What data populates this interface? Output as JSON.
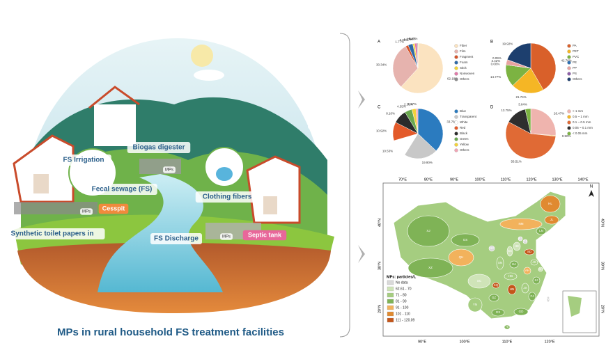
{
  "illustration": {
    "title": "MPs in rural household FS treatment facilities",
    "labels": [
      "FS Irrigation",
      "Biogas digester",
      "MPs",
      "Fecal sewage (FS)",
      "Clothing fibers",
      "MPs",
      "Cesspit",
      "Synthetic toilet papers in",
      "FS Discharge",
      "MPs",
      "Septic tank"
    ]
  },
  "chart_data": [
    {
      "type": "pie",
      "label": "A",
      "categories": [
        "Fiber",
        "Film",
        "Fragment",
        "Foam",
        "Stick",
        "Nonwoven",
        "Others"
      ],
      "values": [
        62.18,
        30.34,
        1.77,
        3.05,
        1.27,
        1.64,
        0.47
      ],
      "value_labels": [
        "62.18%",
        "30.34%",
        "1.77%",
        "3.05%",
        "1.27%",
        "1.64%",
        "0.47%"
      ],
      "colors": [
        "#fbe3c0",
        "#e6b3ae",
        "#d5542a",
        "#2f6aa8",
        "#f2d43a",
        "#e07aa8",
        "#8c8c8c"
      ]
    },
    {
      "type": "pie",
      "label": "B",
      "categories": [
        "PA",
        "PET",
        "PVC",
        "PE",
        "PP",
        "PS",
        "Others"
      ],
      "values": [
        42.76,
        21.74,
        14.77,
        0.0,
        3.42,
        0.09,
        19.92
      ],
      "value_labels": [
        "42.76%",
        "21.74%",
        "14.77%",
        "0.00%",
        "3.42%",
        "0.09%",
        "19.92%"
      ],
      "colors": [
        "#d9602a",
        "#f5b625",
        "#7cb342",
        "#2d6fb3",
        "#e7a3a0",
        "#8e5fa8",
        "#1d3f6e"
      ]
    },
    {
      "type": "pie",
      "label": "C",
      "categories": [
        "Blue",
        "Transparent",
        "White",
        "Red",
        "Black",
        "Green",
        "Yellow",
        "Others"
      ],
      "values": [
        33.76,
        19.9,
        10.53,
        10.92,
        8.1,
        4.35,
        2.35,
        1.17
      ],
      "value_labels": [
        "33.76%",
        "19.90%",
        "10.53%",
        "10.92%",
        "8.10%",
        "4.35%",
        "2.35%",
        "1.17%"
      ],
      "colors": [
        "#2b7bbf",
        "#c8c8c8",
        "#ffffff",
        "#e35a2a",
        "#2b2b2b",
        "#6aa84f",
        "#f3d23a",
        "#f0a4b4"
      ]
    },
    {
      "type": "pie",
      "label": "D",
      "categories": [
        "> 1 mm",
        "0.5 ~ 1 mm",
        "0.1 ~ 0.5 mm",
        "0.05 ~ 0.1 mm",
        "< 0.05 mm"
      ],
      "values": [
        26.47,
        0.5,
        56.51,
        13.75,
        3.64
      ],
      "value_labels": [
        "26.47%",
        "0.50%",
        "56.51%",
        "13.75%",
        "3.64%"
      ],
      "colors": [
        "#efb4ae",
        "#f5b625",
        "#e06a35",
        "#2e2e2e",
        "#7cb342"
      ]
    }
  ],
  "map": {
    "lon_top": [
      "70°E",
      "80°E",
      "90°E",
      "100°E",
      "110°E",
      "120°E",
      "130°E",
      "140°E"
    ],
    "lon_bottom": [
      "90°E",
      "100°E",
      "110°E",
      "120°E"
    ],
    "lat_left": [
      "40°N",
      "30°N",
      "20°N"
    ],
    "lat_right": [
      "40°N",
      "30°N",
      "20°N"
    ],
    "north": "N",
    "legend_title": "MPs: particles/L",
    "legend": [
      {
        "label": "No data",
        "color": "#d9d9d9"
      },
      {
        "label": "62.61 - 70",
        "color": "#cfe4b8"
      },
      {
        "label": "71 - 80",
        "color": "#a5cd80"
      },
      {
        "label": "81 - 90",
        "color": "#7fb356"
      },
      {
        "label": "91 - 100",
        "color": "#f2b25c"
      },
      {
        "label": "101 - 110",
        "color": "#e08a30"
      },
      {
        "label": "111 - 120.09",
        "color": "#c4561a"
      }
    ],
    "provinces": [
      {
        "code": "XJ",
        "color": "#7fb356"
      },
      {
        "code": "XZ",
        "color": "#7fb356"
      },
      {
        "code": "QH",
        "color": "#f2b25c"
      },
      {
        "code": "GS",
        "color": "#7fb356"
      },
      {
        "code": "NM",
        "color": "#f2b25c"
      },
      {
        "code": "HL",
        "color": "#e08a30"
      },
      {
        "code": "JL",
        "color": "#e08a30"
      },
      {
        "code": "LN",
        "color": "#7fb356"
      },
      {
        "code": "BJ",
        "color": "#d9d9d9"
      },
      {
        "code": "TJ",
        "color": "#d9d9d9"
      },
      {
        "code": "HE",
        "color": "#cfe4b8"
      },
      {
        "code": "SX",
        "color": "#cfe4b8"
      },
      {
        "code": "NX",
        "color": "#d9d9d9"
      },
      {
        "code": "SN",
        "color": "#a5cd80"
      },
      {
        "code": "SD",
        "color": "#c4561a"
      },
      {
        "code": "HA",
        "color": "#7fb356"
      },
      {
        "code": "JS",
        "color": "#a5cd80"
      },
      {
        "code": "AH",
        "color": "#f2b25c"
      },
      {
        "code": "SH",
        "color": "#cfe4b8"
      },
      {
        "code": "HB",
        "color": "#a5cd80"
      },
      {
        "code": "ZJ",
        "color": "#7fb356"
      },
      {
        "code": "SC",
        "color": "#cfe4b8"
      },
      {
        "code": "CQ",
        "color": "#c4561a"
      },
      {
        "code": "HN",
        "color": "#c4561a"
      },
      {
        "code": "JX",
        "color": "#a5cd80"
      },
      {
        "code": "FJ",
        "color": "#7fb356"
      },
      {
        "code": "TW",
        "color": "#d9d9d9"
      },
      {
        "code": "GZ",
        "color": "#7fb356"
      },
      {
        "code": "YN",
        "color": "#a5cd80"
      },
      {
        "code": "GX",
        "color": "#7fb356"
      },
      {
        "code": "GD",
        "color": "#7fb356"
      },
      {
        "code": "HI",
        "color": "#7fb356"
      }
    ]
  }
}
